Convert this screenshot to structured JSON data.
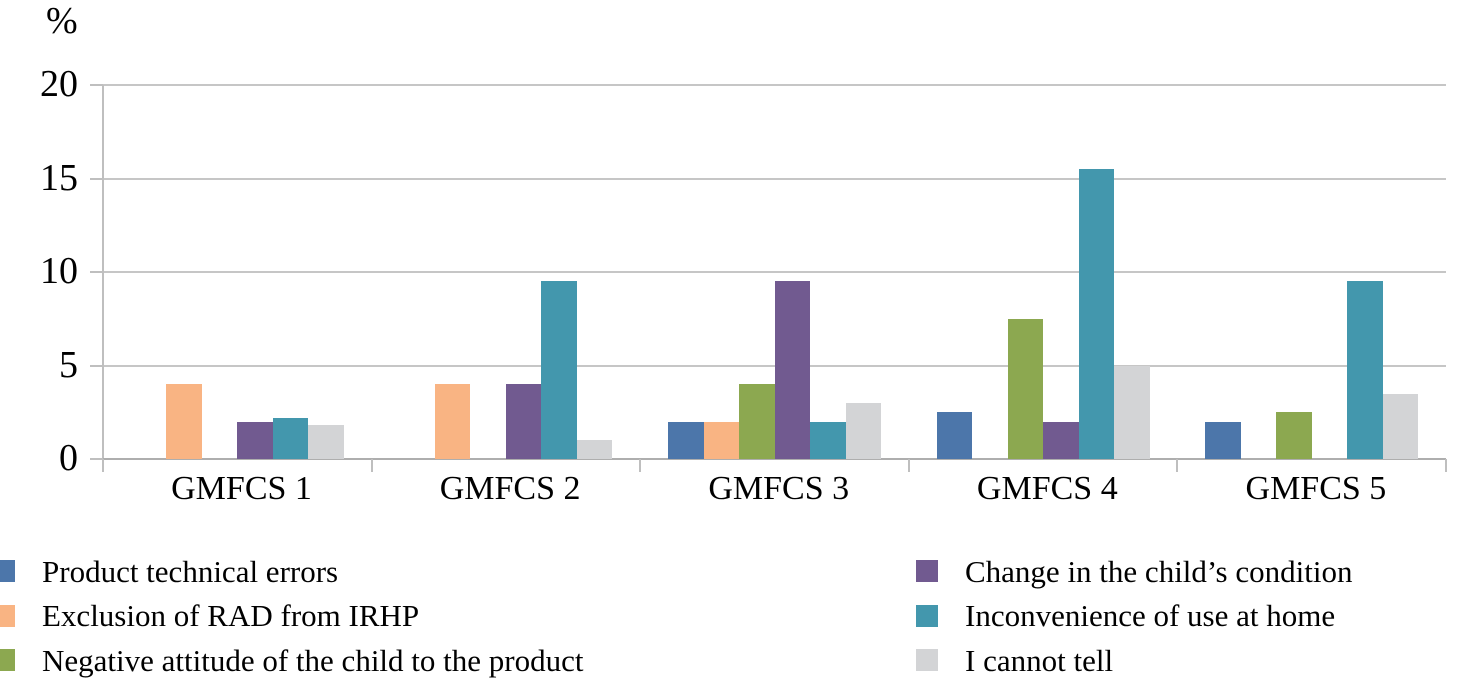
{
  "chart_data": {
    "type": "bar",
    "title": "",
    "unit_label": "%",
    "categories": [
      "GMFCS 1",
      "GMFCS 2",
      "GMFCS 3",
      "GMFCS 4",
      "GMFCS 5"
    ],
    "series": [
      {
        "name": "Product technical errors",
        "color": "#4c76aa",
        "values": [
          0,
          0,
          2,
          2.5,
          2
        ]
      },
      {
        "name": "Exclusion of RAD from IRHP",
        "color": "#f9b483",
        "values": [
          4,
          4,
          2,
          0,
          0
        ]
      },
      {
        "name": "Negative attitude of the child to the product",
        "color": "#8ca850",
        "values": [
          0,
          0,
          4,
          7.5,
          2.5
        ]
      },
      {
        "name": "Change in the child’s condition",
        "color": "#715a90",
        "values": [
          2,
          4,
          9.5,
          2,
          0
        ]
      },
      {
        "name": "Inconvenience of use at home",
        "color": "#4397ad",
        "values": [
          2.2,
          9.5,
          2,
          15.5,
          9.5
        ]
      },
      {
        "name": "I cannot tell",
        "color": "#d3d4d6",
        "values": [
          1.8,
          1,
          3,
          5,
          3.5
        ]
      }
    ],
    "y_axis": {
      "min": 0,
      "max": 20,
      "tick_step": 5,
      "tick_labels": [
        "0",
        "5",
        "10",
        "15",
        "20"
      ]
    },
    "grid": true,
    "legend_position": "bottom-two-columns",
    "legend_columns": {
      "left_series": [
        0,
        1,
        2
      ],
      "right_series": [
        3,
        4,
        5
      ]
    }
  }
}
